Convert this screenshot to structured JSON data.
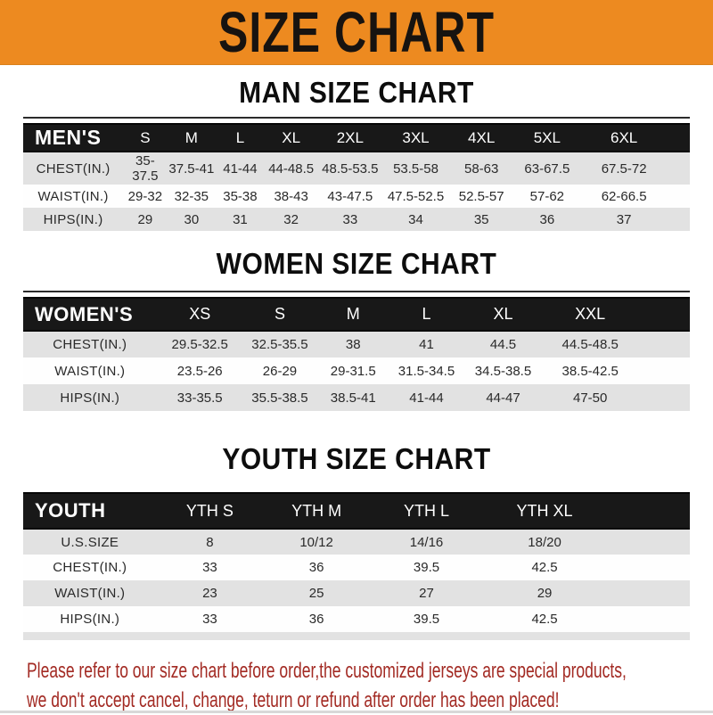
{
  "banner": {
    "title": "SIZE CHART"
  },
  "sections": [
    {
      "heading": "MAN SIZE CHART",
      "corner_label": "MEN'S",
      "columns": [
        "S",
        "M",
        "L",
        "XL",
        "2XL",
        "3XL",
        "4XL",
        "5XL",
        "6XL"
      ],
      "rows": [
        {
          "label": "CHEST(IN.)",
          "values": [
            "35-37.5",
            "37.5-41",
            "41-44",
            "44-48.5",
            "48.5-53.5",
            "53.5-58",
            "58-63",
            "63-67.5",
            "67.5-72"
          ]
        },
        {
          "label": "WAIST(IN.)",
          "values": [
            "29-32",
            "32-35",
            "35-38",
            "38-43",
            "43-47.5",
            "47.5-52.5",
            "52.5-57",
            "57-62",
            "62-66.5"
          ]
        },
        {
          "label": "HIPS(IN.)",
          "values": [
            "29",
            "30",
            "31",
            "32",
            "33",
            "34",
            "35",
            "36",
            "37"
          ]
        }
      ]
    },
    {
      "heading": "WOMEN SIZE CHART",
      "corner_label": "WOMEN'S",
      "columns": [
        "XS",
        "S",
        "M",
        "L",
        "XL",
        "XXL"
      ],
      "rows": [
        {
          "label": "CHEST(IN.)",
          "values": [
            "29.5-32.5",
            "32.5-35.5",
            "38",
            "41",
            "44.5",
            "44.5-48.5"
          ]
        },
        {
          "label": "WAIST(IN.)",
          "values": [
            "23.5-26",
            "26-29",
            "29-31.5",
            "31.5-34.5",
            "34.5-38.5",
            "38.5-42.5"
          ]
        },
        {
          "label": "HIPS(IN.)",
          "values": [
            "33-35.5",
            "35.5-38.5",
            "38.5-41",
            "41-44",
            "44-47",
            "47-50"
          ]
        }
      ]
    },
    {
      "heading": "YOUTH SIZE CHART",
      "corner_label": "YOUTH",
      "columns": [
        "YTH S",
        "YTH M",
        "YTH L",
        "YTH XL"
      ],
      "rows": [
        {
          "label": "U.S.SIZE",
          "values": [
            "8",
            "10/12",
            "14/16",
            "18/20"
          ]
        },
        {
          "label": "CHEST(IN.)",
          "values": [
            "33",
            "36",
            "39.5",
            "42.5"
          ]
        },
        {
          "label": "WAIST(IN.)",
          "values": [
            "23",
            "25",
            "27",
            "29"
          ]
        },
        {
          "label": "HIPS(IN.)",
          "values": [
            "33",
            "36",
            "39.5",
            "42.5"
          ]
        }
      ]
    }
  ],
  "footer": {
    "line1": "Please refer to our size chart before order,the customized jerseys are special products,",
    "line2": "we don't accept cancel, change, teturn or refund after order has been placed!"
  },
  "colors": {
    "banner_orange": "#ED8A20",
    "header_bar_black": "#181818",
    "stripe_gray": "#E2E2E2",
    "note_red": "#A32B24"
  }
}
